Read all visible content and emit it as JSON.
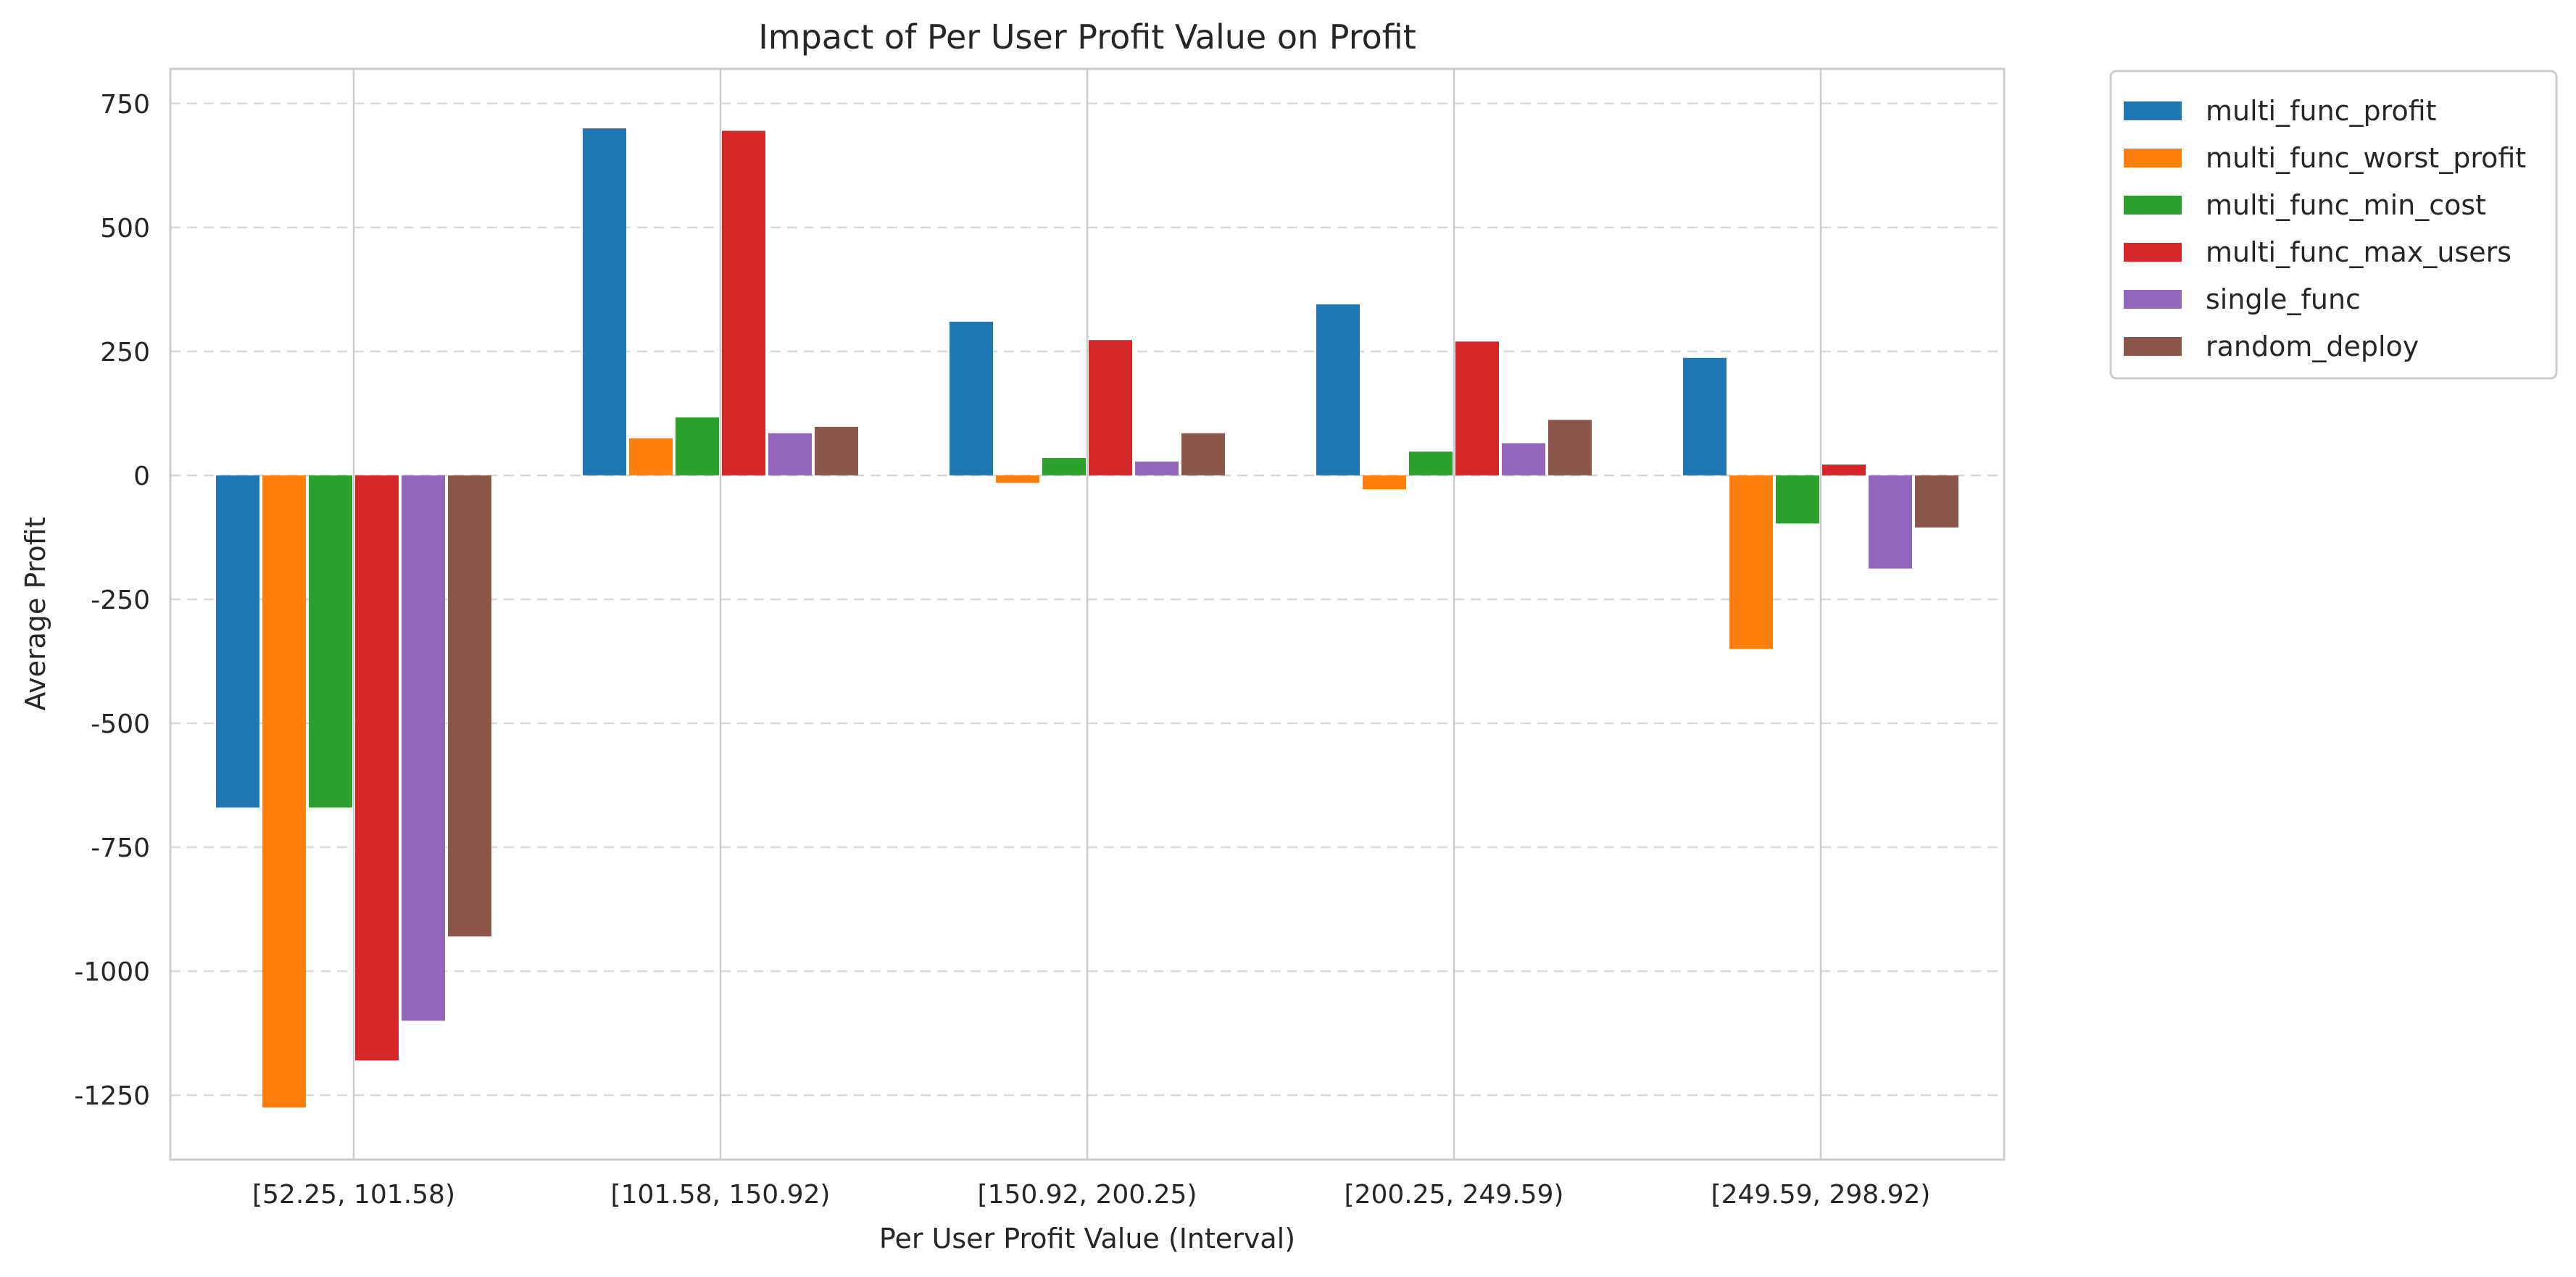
{
  "chart_data": {
    "type": "bar",
    "title": "Impact of Per User Profit Value on Profit",
    "xlabel": "Per User Profit Value (Interval)",
    "ylabel": "Average Profit",
    "categories": [
      "[52.25, 101.58)",
      "[101.58, 150.92)",
      "[150.92, 200.25)",
      "[200.25, 249.59)",
      "[249.59, 298.92)"
    ],
    "ylim": [
      -1380,
      820
    ],
    "yticks": [
      750,
      500,
      250,
      0,
      -250,
      -500,
      -750,
      -1000,
      -1250
    ],
    "ytick_labels": [
      "750",
      "500",
      "250",
      "0",
      "-250",
      "-500",
      "-750",
      "-1000",
      "-1250"
    ],
    "grid": true,
    "legend_position": "outside top-right",
    "series": [
      {
        "name": "multi_func_profit",
        "color": "#1f77b4",
        "values": [
          -670,
          700,
          310,
          345,
          237
        ]
      },
      {
        "name": "multi_func_worst_profit",
        "color": "#ff7f0e",
        "values": [
          -1275,
          75,
          -15,
          -28,
          -350
        ]
      },
      {
        "name": "multi_func_min_cost",
        "color": "#2ca02c",
        "values": [
          -670,
          117,
          35,
          48,
          -97
        ]
      },
      {
        "name": "multi_func_max_users",
        "color": "#d62728",
        "values": [
          -1180,
          695,
          273,
          270,
          22
        ]
      },
      {
        "name": "single_func",
        "color": "#9467bd",
        "values": [
          -1100,
          85,
          28,
          65,
          -188
        ]
      },
      {
        "name": "random_deploy",
        "color": "#8c564b",
        "values": [
          -930,
          98,
          85,
          112,
          -105
        ]
      }
    ]
  }
}
